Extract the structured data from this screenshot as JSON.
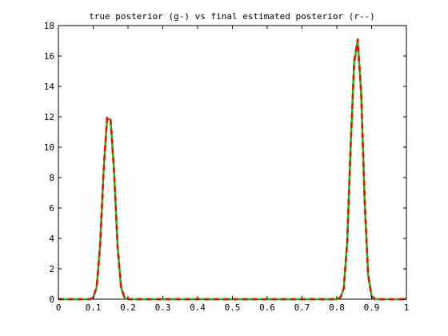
{
  "chart_data": {
    "type": "line",
    "title": "true posterior (g-) vs final estimated posterior (r--)",
    "xlabel": "",
    "ylabel": "",
    "xlim": [
      0,
      1
    ],
    "ylim": [
      0,
      18
    ],
    "xticks": [
      0,
      0.1,
      0.2,
      0.3,
      0.4,
      0.5,
      0.6,
      0.7,
      0.8,
      0.9,
      1
    ],
    "xtick_labels": [
      "0",
      "0.1",
      "0.2",
      "0.3",
      "0.4",
      "0.5",
      "0.6",
      "0.7",
      "0.8",
      "0.9",
      "1"
    ],
    "yticks": [
      0,
      2,
      4,
      6,
      8,
      10,
      12,
      14,
      16,
      18
    ],
    "ytick_labels": [
      "0",
      "2",
      "4",
      "6",
      "8",
      "10",
      "12",
      "14",
      "16",
      "18"
    ],
    "grid": false,
    "legend": "none",
    "series": [
      {
        "color": "#00cc00",
        "style": "solid",
        "x": [
          0,
          0.09,
          0.1,
          0.11,
          0.12,
          0.13,
          0.14,
          0.15,
          0.16,
          0.17,
          0.18,
          0.19,
          0.2,
          0.8,
          0.81,
          0.82,
          0.83,
          0.84,
          0.85,
          0.86,
          0.87,
          0.88,
          0.89,
          0.9,
          0.91,
          1
        ],
        "y": [
          0,
          0,
          0.1,
          0.8,
          3.6,
          8.5,
          11.9,
          11.8,
          8.4,
          3.5,
          0.8,
          0.1,
          0,
          0,
          0.1,
          0.7,
          3.8,
          10.2,
          15.6,
          17.0,
          13.6,
          6.5,
          1.6,
          0.2,
          0,
          0
        ]
      },
      {
        "color": "#ff0000",
        "style": "dashed",
        "x": [
          0,
          0.09,
          0.1,
          0.11,
          0.12,
          0.13,
          0.14,
          0.15,
          0.16,
          0.17,
          0.18,
          0.19,
          0.2,
          0.8,
          0.81,
          0.82,
          0.83,
          0.84,
          0.85,
          0.86,
          0.87,
          0.88,
          0.89,
          0.9,
          0.91,
          1
        ],
        "y": [
          0,
          0,
          0.1,
          0.8,
          3.6,
          8.5,
          12.0,
          11.8,
          8.4,
          3.5,
          0.8,
          0.1,
          0,
          0,
          0.1,
          0.7,
          3.8,
          10.2,
          15.6,
          17.1,
          13.6,
          6.5,
          1.6,
          0.2,
          0,
          0
        ]
      }
    ]
  }
}
